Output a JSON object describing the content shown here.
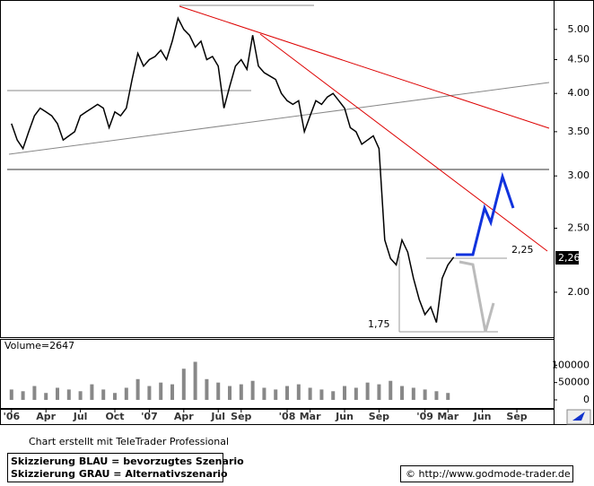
{
  "chart_data": [
    {
      "type": "line",
      "log_scale": true,
      "color": "#000000",
      "x": [
        0,
        0.5,
        1,
        1.5,
        2,
        2.5,
        3,
        3.5,
        4,
        4.5,
        5,
        5.5,
        6,
        6.5,
        7,
        7.5,
        8,
        8.5,
        9,
        9.5,
        10,
        10.5,
        11,
        11.5,
        12,
        12.5,
        13,
        13.5,
        14,
        14.5,
        15,
        15.5,
        16,
        16.5,
        17,
        17.5,
        18,
        18.5,
        19,
        19.5,
        20,
        20.5,
        21,
        21.5,
        22,
        22.5,
        23,
        23.5,
        24,
        24.5,
        25,
        25.5,
        26,
        26.5,
        27,
        27.5,
        28,
        28.5,
        29,
        29.5,
        30,
        30.5,
        31,
        31.5,
        32,
        32.5,
        33,
        33.5,
        34,
        34.5,
        35,
        35.5,
        36,
        36.5,
        37,
        37.5,
        38,
        38.5
      ],
      "values": [
        3.6,
        3.4,
        3.3,
        3.5,
        3.7,
        3.8,
        3.75,
        3.7,
        3.6,
        3.4,
        3.45,
        3.5,
        3.7,
        3.75,
        3.8,
        3.85,
        3.8,
        3.55,
        3.75,
        3.7,
        3.8,
        4.2,
        4.6,
        4.4,
        4.5,
        4.55,
        4.65,
        4.5,
        4.8,
        5.2,
        5.0,
        4.9,
        4.7,
        4.8,
        4.5,
        4.55,
        4.4,
        3.8,
        4.1,
        4.4,
        4.5,
        4.35,
        4.9,
        4.4,
        4.3,
        4.25,
        4.2,
        4.0,
        3.9,
        3.85,
        3.9,
        3.5,
        3.7,
        3.9,
        3.85,
        3.95,
        4.0,
        3.9,
        3.8,
        3.55,
        3.5,
        3.35,
        3.4,
        3.45,
        3.3,
        2.4,
        2.25,
        2.2,
        2.4,
        2.3,
        2.1,
        1.95,
        1.85,
        1.9,
        1.8,
        2.1,
        2.2,
        2.26
      ],
      "xlim": [
        -1,
        47.2
      ],
      "xticks": [
        {
          "value": 0,
          "label": "'06"
        },
        {
          "value": 3,
          "label": "Apr"
        },
        {
          "value": 6,
          "label": "Jul"
        },
        {
          "value": 9,
          "label": "Oct"
        },
        {
          "value": 12,
          "label": "'07"
        },
        {
          "value": 15,
          "label": "Apr"
        },
        {
          "value": 18,
          "label": "Jul"
        },
        {
          "value": 20,
          "label": "Sep"
        },
        {
          "value": 24,
          "label": "'08"
        },
        {
          "value": 26,
          "label": "Mar"
        },
        {
          "value": 29,
          "label": "Jun"
        },
        {
          "value": 32,
          "label": "Sep"
        },
        {
          "value": 36,
          "label": "'09"
        },
        {
          "value": 38,
          "label": "Mar"
        },
        {
          "value": 41,
          "label": "Jun"
        },
        {
          "value": 44,
          "label": "Sep"
        }
      ],
      "ylim": [
        1.71,
        5.54
      ],
      "yticks": [
        {
          "value": 2,
          "label": "2.00"
        },
        {
          "value": 2.5,
          "label": "2.50"
        },
        {
          "value": 3,
          "label": "3.00"
        },
        {
          "value": 3.5,
          "label": "3.50"
        },
        {
          "value": 4,
          "label": "4.00"
        },
        {
          "value": 4.5,
          "label": "4.50"
        },
        {
          "value": 5,
          "label": "5.00"
        }
      ],
      "last_price_label": "2,26",
      "annotations": [
        "2,25",
        "1,75"
      ]
    },
    {
      "type": "bar",
      "title": "Volume=2647",
      "color": "#888888",
      "x": [
        0,
        1,
        2,
        3,
        4,
        5,
        6,
        7,
        8,
        9,
        10,
        11,
        12,
        13,
        14,
        15,
        16,
        17,
        18,
        19,
        20,
        21,
        22,
        23,
        24,
        25,
        26,
        27,
        28,
        29,
        30,
        31,
        32,
        33,
        34,
        35,
        36,
        37,
        38
      ],
      "values": [
        30000,
        25000,
        40000,
        20000,
        35000,
        30000,
        25000,
        45000,
        30000,
        20000,
        35000,
        60000,
        40000,
        50000,
        45000,
        90000,
        110000,
        60000,
        50000,
        40000,
        45000,
        55000,
        35000,
        30000,
        40000,
        45000,
        35000,
        30000,
        25000,
        40000,
        35000,
        50000,
        45000,
        55000,
        40000,
        35000,
        30000,
        25000,
        20000
      ],
      "xlim": [
        -1,
        47.2
      ],
      "ylim": [
        -26000,
        176000
      ],
      "yticks": [
        0,
        50000,
        100000
      ]
    }
  ],
  "footer": {
    "credit": "Chart erstellt mit TeleTrader Professional",
    "legend": [
      "Skizzierung BLAU = bevorzugtes Szenario",
      "Skizzierung GRAU = Alternativszenario"
    ],
    "source": "© http://www.godmode-trader.de"
  }
}
